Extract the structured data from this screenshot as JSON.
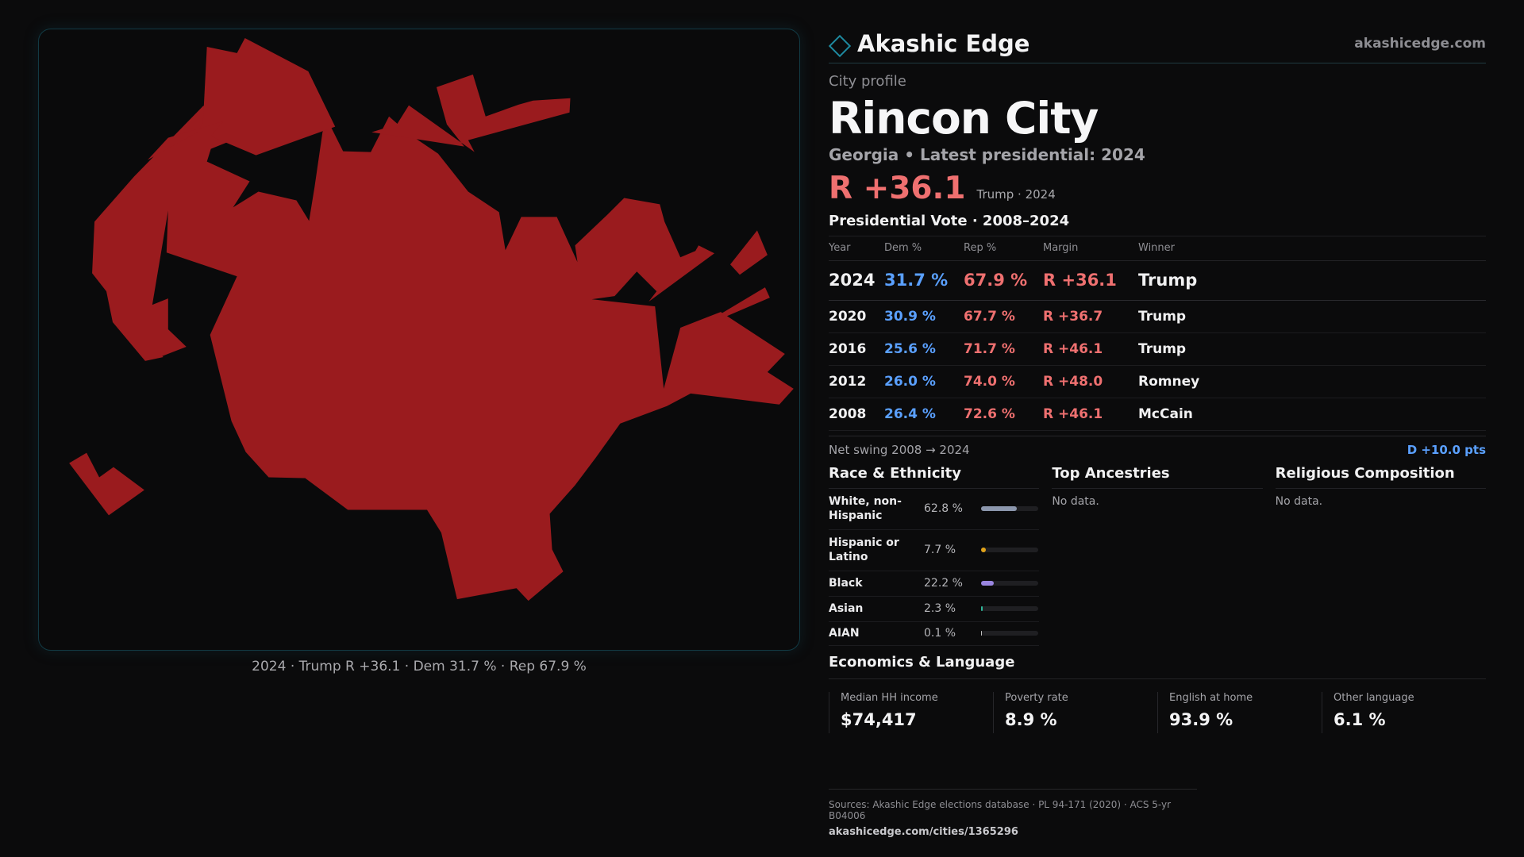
{
  "brand": {
    "name": "Akashic Edge",
    "url": "akashicedge.com"
  },
  "profile": {
    "eyebrow": "City profile",
    "city": "Rincon City",
    "subtitle": "Georgia • Latest presidential: 2024",
    "margin": "R +36.1",
    "margin_note": "Trump · 2024",
    "map_fill": "#9a1b1e"
  },
  "map_caption": "2024 · Trump R +36.1 · Dem 31.7 % · Rep 67.9 %",
  "votes": {
    "title": "Presidential Vote · 2008–2024",
    "headers": {
      "year": "Year",
      "dem": "Dem %",
      "rep": "Rep %",
      "margin": "Margin",
      "winner": "Winner"
    },
    "rows": [
      {
        "year": "2024",
        "dem": "31.7 %",
        "rep": "67.9 %",
        "margin": "R +36.1",
        "winner": "Trump"
      },
      {
        "year": "2020",
        "dem": "30.9 %",
        "rep": "67.7 %",
        "margin": "R +36.7",
        "winner": "Trump"
      },
      {
        "year": "2016",
        "dem": "25.6 %",
        "rep": "71.7 %",
        "margin": "R +46.1",
        "winner": "Trump"
      },
      {
        "year": "2012",
        "dem": "26.0 %",
        "rep": "74.0 %",
        "margin": "R +48.0",
        "winner": "Romney"
      },
      {
        "year": "2008",
        "dem": "26.4 %",
        "rep": "72.6 %",
        "margin": "R +46.1",
        "winner": "McCain"
      }
    ],
    "swing_label": "Net swing 2008 → 2024",
    "swing_value": "D +10.0 pts"
  },
  "race": {
    "title": "Race & Ethnicity",
    "rows": [
      {
        "label": "White, non-Hispanic",
        "pct": "62.8 %",
        "value": 62.8,
        "color": "#8c97ad"
      },
      {
        "label": "Hispanic or Latino",
        "pct": "7.7 %",
        "value": 7.7,
        "color": "#e0a21a"
      },
      {
        "label": "Black",
        "pct": "22.2 %",
        "value": 22.2,
        "color": "#9a86e0"
      },
      {
        "label": "Asian",
        "pct": "2.3 %",
        "value": 2.3,
        "color": "#2fb69a"
      },
      {
        "label": "AIAN",
        "pct": "0.1 %",
        "value": 0.1,
        "color": "#c0c0c0"
      }
    ]
  },
  "ancestries": {
    "title": "Top Ancestries",
    "empty": "No data."
  },
  "religion": {
    "title": "Religious Composition",
    "empty": "No data."
  },
  "economics": {
    "title": "Economics & Language",
    "items": [
      {
        "label": "Median HH income",
        "value": "$74,417"
      },
      {
        "label": "Poverty rate",
        "value": "8.9 %"
      },
      {
        "label": "English at home",
        "value": "93.9 %"
      },
      {
        "label": "Other language",
        "value": "6.1 %"
      }
    ]
  },
  "sources": {
    "line": "Sources: Akashic Edge elections database · PL 94-171 (2020) · ACS 5-yr B04006",
    "url": "akashicedge.com/cities/1365296"
  }
}
